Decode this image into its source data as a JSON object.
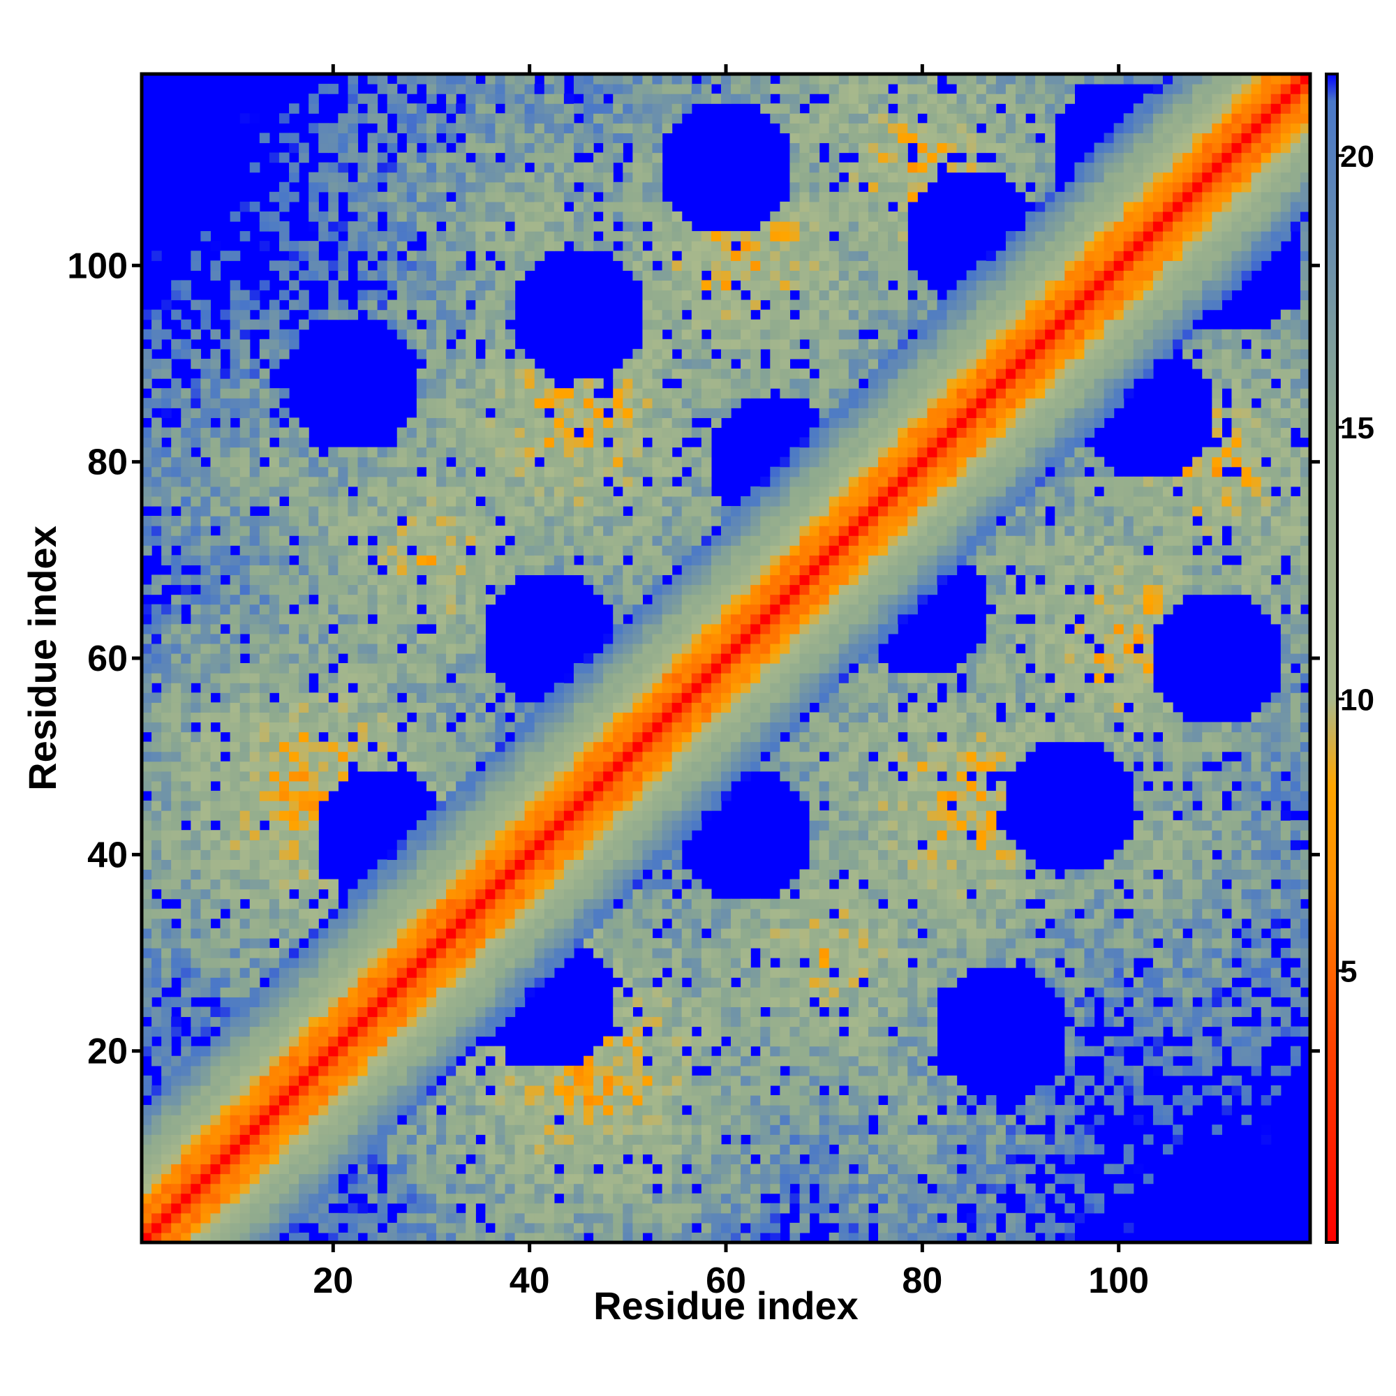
{
  "chart_data": {
    "type": "heatmap",
    "title": "",
    "xlabel": "Residue index",
    "ylabel": "Residue index",
    "n_residues": 119,
    "xlim": [
      0.5,
      119.5
    ],
    "ylim": [
      0.5,
      119.5
    ],
    "x_ticks": [
      20,
      40,
      60,
      80,
      100
    ],
    "y_ticks": [
      20,
      40,
      60,
      80,
      100
    ],
    "colorbar": {
      "ticks": [
        5,
        10,
        15,
        20
      ],
      "range": [
        0,
        21.5
      ],
      "cutoff_value": 21.5,
      "colors": [
        {
          "value": 0,
          "color": "#ff0000"
        },
        {
          "value": 3.8,
          "color": "#ff4500"
        },
        {
          "value": 6.5,
          "color": "#ff8c00"
        },
        {
          "value": 8.4,
          "color": "#ffa500"
        },
        {
          "value": 10,
          "color": "#a9b98c"
        },
        {
          "value": 15,
          "color": "#8faa8e"
        },
        {
          "value": 21,
          "color": "#4a78c8"
        },
        {
          "value": 21.5,
          "color": "#0000ff"
        }
      ]
    },
    "colors": {
      "background_far": "#0000ff",
      "diagonal": "#ff0000"
    },
    "structure": {
      "diagonal_distance": 0,
      "helix_band_distances": [
        3.8,
        5.5,
        6.5,
        9
      ],
      "contact_clusters_description_free": [
        {
          "center_i": 18,
          "center_j": 46,
          "peak": 9,
          "spread": 30
        },
        {
          "center_i": 30,
          "center_j": 70,
          "peak": 11,
          "spread": 34
        },
        {
          "center_i": 45,
          "center_j": 84,
          "peak": 10,
          "spread": 34
        },
        {
          "center_i": 62,
          "center_j": 100,
          "peak": 10,
          "spread": 32
        },
        {
          "center_i": 80,
          "center_j": 110,
          "peak": 10,
          "spread": 28
        },
        {
          "center_i": 14,
          "center_j": 78,
          "peak": 14,
          "spread": 30
        },
        {
          "center_i": 40,
          "center_j": 104,
          "peak": 13,
          "spread": 32
        },
        {
          "center_i": 70,
          "center_j": 116,
          "peak": 12,
          "spread": 26
        }
      ],
      "voids": [
        {
          "center_i": 25,
          "center_j": 42
        },
        {
          "center_i": 42,
          "center_j": 62
        },
        {
          "center_i": 22,
          "center_j": 88
        },
        {
          "center_i": 65,
          "center_j": 80
        },
        {
          "center_i": 85,
          "center_j": 103
        },
        {
          "center_i": 60,
          "center_j": 110
        },
        {
          "center_i": 100,
          "center_j": 112
        },
        {
          "center_i": 45,
          "center_j": 95
        }
      ]
    }
  }
}
